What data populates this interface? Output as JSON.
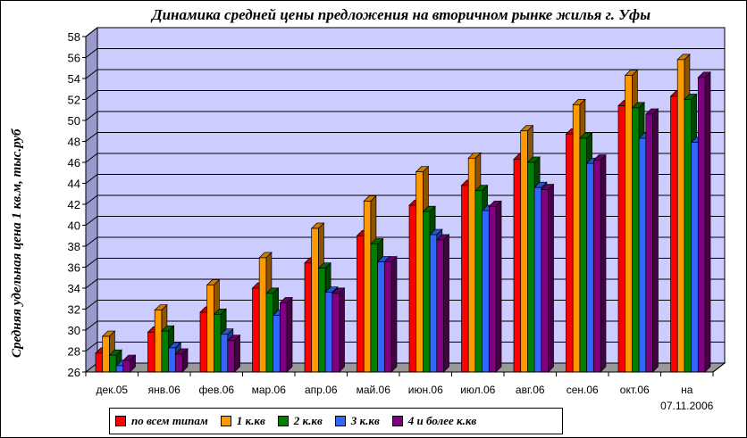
{
  "chart_data": {
    "type": "bar",
    "title": "Динамика средней цены предложения на вторичном рынке жилья г. Уфы",
    "ylabel": "Средняя удельная цена 1 кв.м, тыс.руб",
    "xlabel": "",
    "ylim": [
      26,
      58
    ],
    "yticks": [
      "26",
      "28",
      "30",
      "32",
      "34",
      "36",
      "38",
      "40",
      "42",
      "44",
      "46",
      "48",
      "50",
      "52",
      "54",
      "56",
      "58"
    ],
    "categories": [
      "дек.05",
      "янв.06",
      "фев.06",
      "мар.06",
      "апр.06",
      "май.06",
      "июн.06",
      "июл.06",
      "авг.06",
      "сен.06",
      "окт.06",
      "на 07.11.2006"
    ],
    "category_lines": [
      [
        "дек.05"
      ],
      [
        "янв.06"
      ],
      [
        "фев.06"
      ],
      [
        "мар.06"
      ],
      [
        "апр.06"
      ],
      [
        "май.06"
      ],
      [
        "июн.06"
      ],
      [
        "июл.06"
      ],
      [
        "авг.06"
      ],
      [
        "сен.06"
      ],
      [
        "окт.06"
      ],
      [
        "на",
        "07.11.2006"
      ]
    ],
    "grid": true,
    "legend_position": "bottom",
    "series": [
      {
        "name": "по всем типам",
        "color": "#ff0000",
        "values": [
          27.8,
          29.8,
          31.7,
          34.0,
          36.4,
          39.0,
          41.9,
          43.8,
          46.3,
          48.7,
          51.4,
          52.3
        ]
      },
      {
        "name": "1 к.кв",
        "color": "#ff9900",
        "values": [
          29.4,
          31.9,
          34.3,
          36.9,
          39.7,
          42.3,
          45.1,
          46.4,
          49.0,
          51.5,
          54.3,
          55.8
        ]
      },
      {
        "name": "2 к.кв",
        "color": "#008000",
        "values": [
          27.6,
          29.9,
          31.5,
          33.5,
          35.9,
          38.2,
          41.3,
          43.3,
          46.0,
          48.3,
          51.2,
          52.0
        ]
      },
      {
        "name": "3 к.кв",
        "color": "#3366ff",
        "values": [
          26.6,
          28.3,
          29.6,
          31.4,
          33.6,
          36.5,
          39.1,
          41.4,
          43.6,
          45.9,
          48.3,
          47.9
        ]
      },
      {
        "name": "4 и более к.кв",
        "color": "#800080",
        "values": [
          27.1,
          27.7,
          29.0,
          32.6,
          33.5,
          36.5,
          38.6,
          41.8,
          43.4,
          46.2,
          50.6,
          54.1
        ]
      }
    ]
  }
}
